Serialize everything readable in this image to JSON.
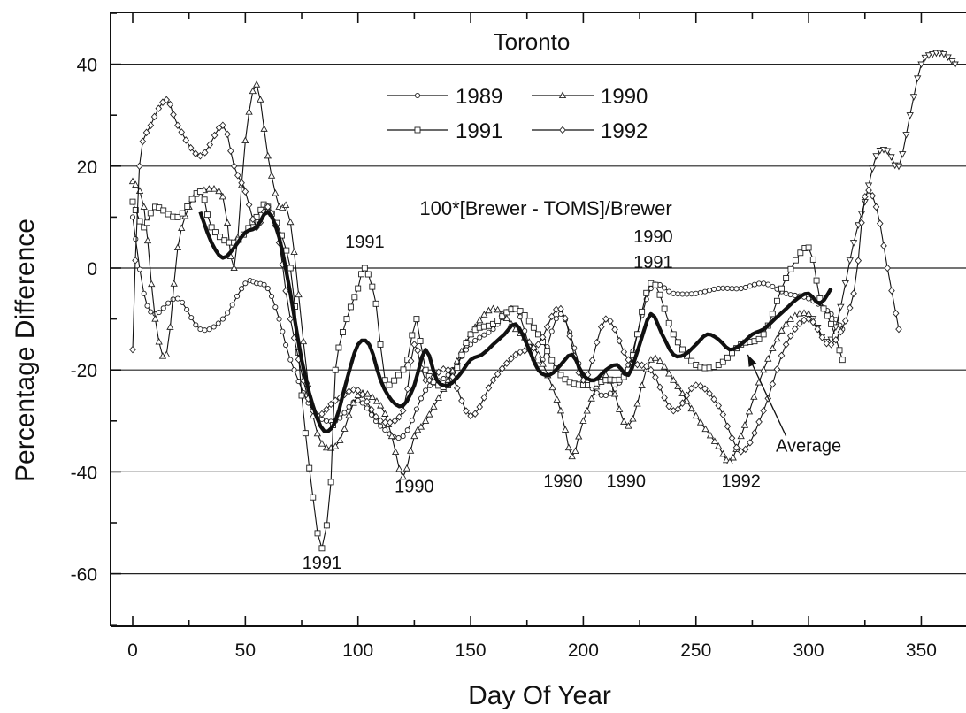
{
  "chart_data": {
    "type": "line",
    "title": "Toronto",
    "formula": "100*[Brewer - TOMS]/Brewer",
    "xlabel": "Day Of Year",
    "ylabel": "Percentage Difference",
    "xlim": [
      -10,
      365
    ],
    "ylim": [
      -70,
      50
    ],
    "xticks": [
      0,
      50,
      100,
      150,
      200,
      250,
      300,
      350
    ],
    "yticks": [
      -60,
      -40,
      -20,
      0,
      20,
      40
    ],
    "grid": "horizontal",
    "legend_position": "top-center",
    "legend": [
      {
        "label": "1989",
        "marker": "circle"
      },
      {
        "label": "1990",
        "marker": "triangle-up"
      },
      {
        "label": "1991",
        "marker": "square"
      },
      {
        "label": "1992",
        "marker": "diamond"
      }
    ],
    "series": [
      {
        "name": "1989",
        "marker": "circle",
        "x": [
          0,
          5,
          10,
          20,
          30,
          40,
          50,
          55,
          60,
          65,
          70,
          80,
          90,
          100,
          110,
          120,
          130,
          140,
          150,
          160,
          170,
          180,
          190,
          200,
          210,
          220,
          230,
          240,
          250,
          260,
          270,
          280,
          290,
          300,
          310,
          315
        ],
        "y": [
          10,
          -5,
          -9,
          -6,
          -12,
          -10,
          -3,
          -3,
          -4,
          -10,
          -18,
          -28,
          -30,
          -26,
          -31,
          -33,
          -24,
          -21,
          -15,
          -12,
          -8,
          -19,
          -9,
          -21,
          -25,
          -19,
          -4,
          -5,
          -5,
          -4,
          -4,
          -3,
          -5,
          -6,
          -9,
          -12
        ]
      },
      {
        "name": "1990",
        "marker": "triangle-up",
        "x": [
          0,
          5,
          10,
          15,
          20,
          25,
          30,
          40,
          45,
          50,
          55,
          60,
          65,
          70,
          80,
          90,
          100,
          110,
          115,
          120,
          125,
          130,
          140,
          150,
          160,
          170,
          180,
          190,
          195,
          200,
          210,
          220,
          230,
          240,
          250,
          260,
          265,
          270,
          280,
          290,
          300,
          310,
          320,
          325,
          330,
          335,
          340,
          345,
          350,
          355,
          360,
          365
        ],
        "y": [
          17,
          12,
          -10,
          -17,
          4,
          12,
          15,
          14,
          0,
          25,
          36,
          22,
          12,
          9,
          -29,
          -35,
          -25,
          -27,
          -33,
          -41,
          -33,
          -30,
          -22,
          -13,
          -8,
          -12,
          -17,
          -28,
          -37,
          -30,
          -21,
          -31,
          -18,
          -22,
          -29,
          -35,
          -38,
          -33,
          -20,
          -11,
          -9,
          -14,
          5,
          13,
          22,
          23,
          20,
          30,
          40,
          42,
          42,
          40
        ]
      },
      {
        "name": "1991",
        "marker": "square",
        "x": [
          0,
          5,
          10,
          20,
          30,
          35,
          45,
          55,
          60,
          70,
          75,
          80,
          84,
          88,
          90,
          95,
          100,
          103,
          108,
          112,
          118,
          122,
          126,
          130,
          140,
          150,
          160,
          170,
          180,
          190,
          200,
          210,
          220,
          230,
          240,
          250,
          260,
          270,
          280,
          290,
          300,
          305,
          310,
          315
        ],
        "y": [
          13,
          8,
          12,
          10,
          15,
          8,
          5,
          10,
          12,
          0,
          -25,
          -45,
          -55,
          -42,
          -20,
          -10,
          -4,
          0,
          -7,
          -22,
          -21,
          -18,
          -10,
          -20,
          -23,
          -13,
          -11,
          -8,
          -13,
          -21,
          -23,
          -22,
          -20,
          -3,
          -13,
          -19,
          -19,
          -15,
          -13,
          -2,
          4,
          -6,
          -11,
          -18
        ]
      },
      {
        "name": "1992",
        "marker": "diamond",
        "x": [
          0,
          3,
          8,
          15,
          20,
          30,
          40,
          45,
          50,
          55,
          60,
          65,
          70,
          80,
          90,
          100,
          110,
          120,
          125,
          130,
          140,
          150,
          160,
          170,
          180,
          190,
          200,
          210,
          220,
          230,
          240,
          250,
          260,
          270,
          280,
          290,
          300,
          310,
          320,
          325,
          330,
          335,
          340
        ],
        "y": [
          -16,
          20,
          28,
          33,
          28,
          22,
          28,
          20,
          15,
          8,
          12,
          5,
          -10,
          -28,
          -26,
          -24,
          -30,
          -28,
          -15,
          -22,
          -20,
          -29,
          -22,
          -17,
          -15,
          -8,
          -22,
          -10,
          -18,
          -20,
          -28,
          -23,
          -27,
          -36,
          -28,
          -15,
          -10,
          -15,
          -5,
          14,
          12,
          0,
          -12
        ]
      },
      {
        "name": "Average",
        "x": [
          30,
          35,
          40,
          45,
          50,
          55,
          60,
          65,
          70,
          75,
          80,
          85,
          90,
          95,
          100,
          105,
          110,
          115,
          120,
          125,
          130,
          135,
          140,
          145,
          150,
          155,
          160,
          165,
          170,
          175,
          180,
          185,
          190,
          195,
          200,
          205,
          210,
          215,
          220,
          225,
          230,
          235,
          240,
          245,
          250,
          255,
          260,
          265,
          270,
          275,
          280,
          285,
          290,
          295,
          300,
          305,
          310
        ],
        "y": [
          11,
          5,
          2,
          4,
          7,
          8,
          11,
          6,
          -5,
          -18,
          -27,
          -32,
          -30,
          -22,
          -15,
          -15,
          -22,
          -26,
          -27,
          -23,
          -16,
          -22,
          -23,
          -21,
          -18,
          -17,
          -15,
          -13,
          -11,
          -15,
          -20,
          -21,
          -19,
          -17,
          -21,
          -22,
          -20,
          -19,
          -21,
          -15,
          -9,
          -13,
          -17,
          -17,
          -15,
          -13,
          -14,
          -16,
          -15,
          -13,
          -12,
          -10,
          -8,
          -6,
          -5,
          -7,
          -4
        ]
      }
    ],
    "annotations": [
      {
        "text": "1991",
        "x": 103,
        "y": 4
      },
      {
        "text": "1990",
        "x": 231,
        "y": 5
      },
      {
        "text": "1991",
        "x": 231,
        "y": 0
      },
      {
        "text": "1990",
        "x": 125,
        "y": -44
      },
      {
        "text": "1990",
        "x": 191,
        "y": -43
      },
      {
        "text": "1990",
        "x": 219,
        "y": -43
      },
      {
        "text": "1992",
        "x": 270,
        "y": -43
      },
      {
        "text": "1991",
        "x": 84,
        "y": -59
      },
      {
        "text": "Average",
        "x": 300,
        "y": -36
      }
    ],
    "arrow": {
      "label": "Average",
      "from": [
        290,
        -33
      ],
      "to": [
        273,
        -17
      ]
    }
  }
}
